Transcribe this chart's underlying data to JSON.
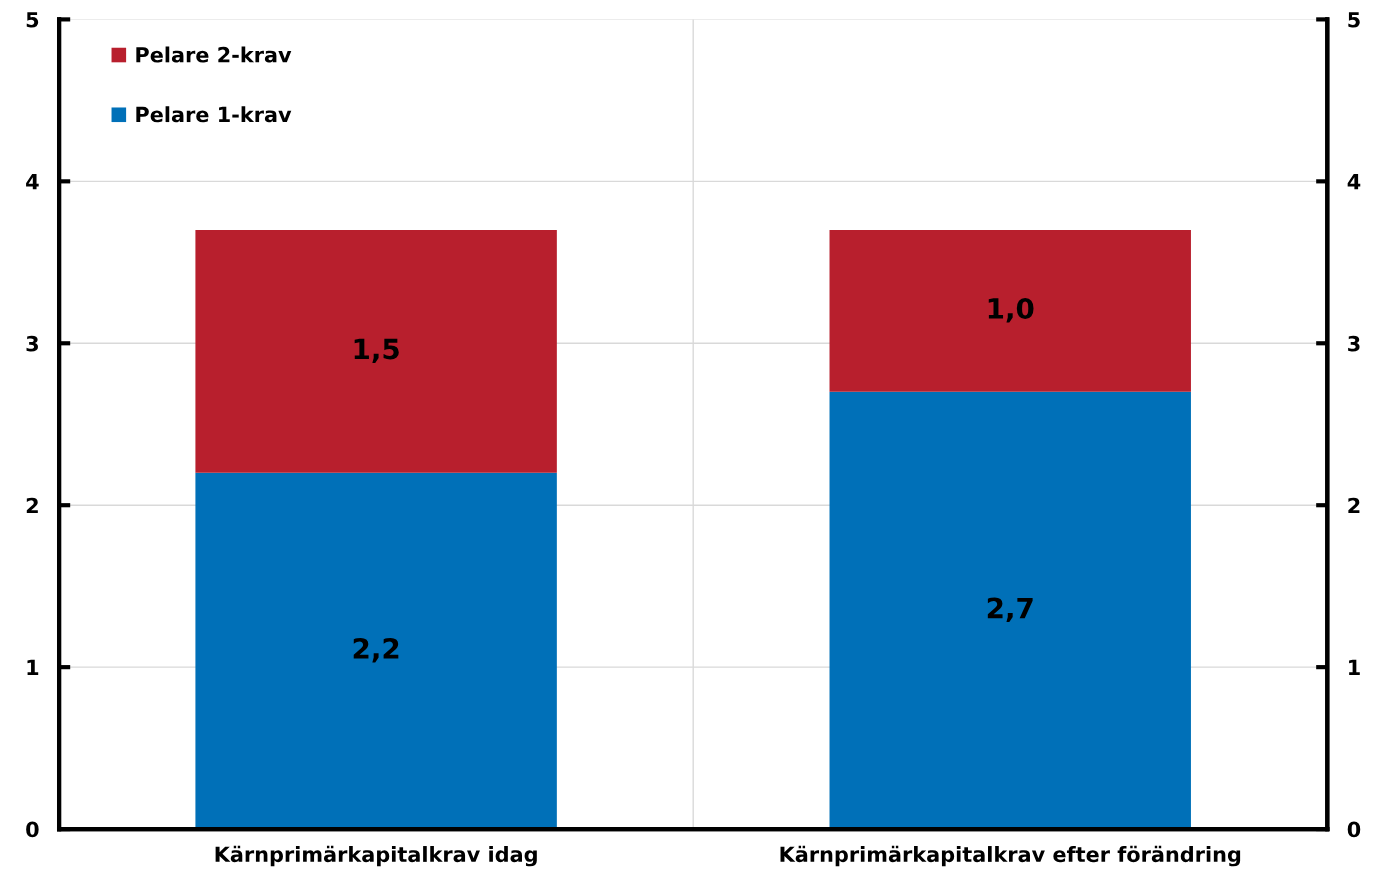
{
  "chart_data": {
    "type": "bar",
    "stacked": true,
    "categories": [
      "Kärnprimärkapitalkrav idag",
      "Kärnprimärkapitalkrav efter förändring"
    ],
    "series": [
      {
        "name": "Pelare 1-krav",
        "color": "#0070b8",
        "values": [
          2.2,
          2.7
        ],
        "value_labels": [
          "2,2",
          "2,7"
        ]
      },
      {
        "name": "Pelare 2-krav",
        "color": "#b81f2d",
        "values": [
          1.5,
          1.0
        ],
        "value_labels": [
          "1,5",
          "1,0"
        ]
      }
    ],
    "ylim": [
      0,
      5
    ],
    "yticks": [
      0,
      1,
      2,
      3,
      4,
      5
    ],
    "y2lim": [
      0,
      5
    ],
    "y2ticks": [
      0,
      1,
      2,
      3,
      4,
      5
    ],
    "grid": true,
    "legend": "top left"
  }
}
